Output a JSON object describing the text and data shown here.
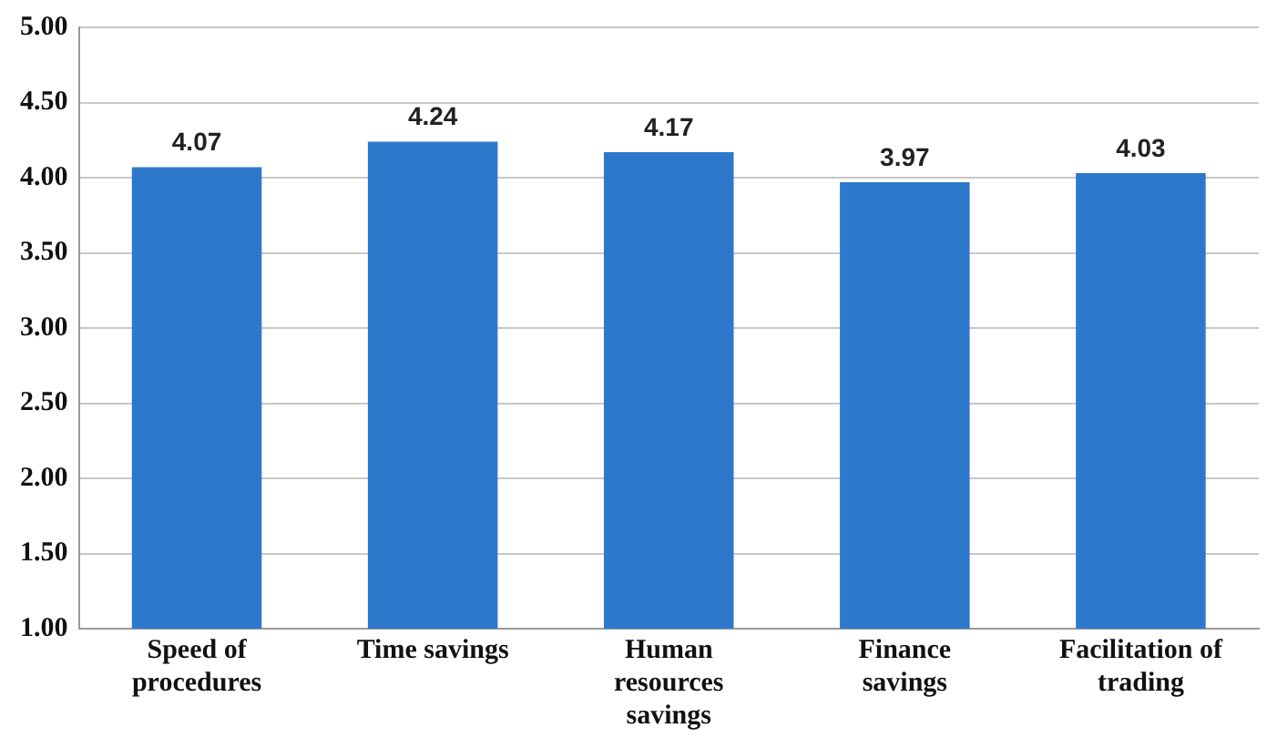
{
  "chart_data": {
    "type": "bar",
    "categories": [
      "Speed of\nprocedures",
      "Time savings",
      "Human\nresources\nsavings",
      "Finance\nsavings",
      "Facilitation of\ntrading"
    ],
    "values": [
      4.07,
      4.24,
      4.17,
      3.97,
      4.03
    ],
    "color": "#2e78cc",
    "ylim": [
      1,
      5
    ],
    "yticks": [
      {
        "value": 1,
        "label": "1.00"
      },
      {
        "value": 1.5,
        "label": "1.50"
      },
      {
        "value": 2,
        "label": "2.00"
      },
      {
        "value": 2.5,
        "label": "2.50"
      },
      {
        "value": 3,
        "label": "3.00"
      },
      {
        "value": 3.5,
        "label": "3.50"
      },
      {
        "value": 4,
        "label": "4.00"
      },
      {
        "value": 4.5,
        "label": "4.50"
      },
      {
        "value": 5,
        "label": "5.00"
      }
    ],
    "grid": "y",
    "data_labels": true
  }
}
